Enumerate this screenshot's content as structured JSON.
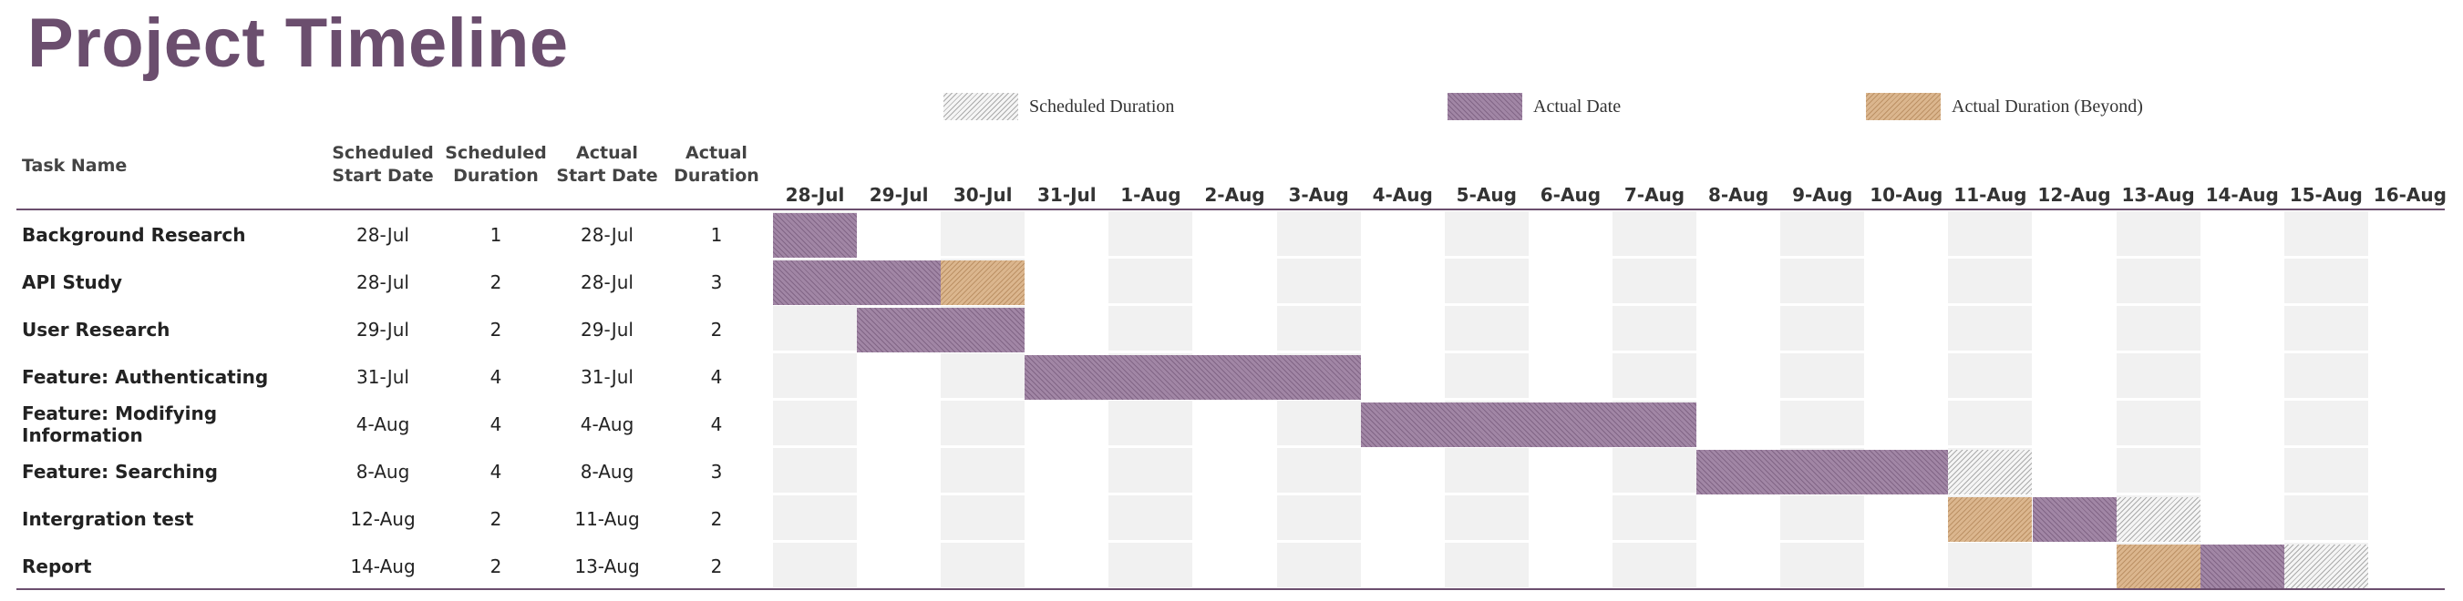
{
  "title": "Project Timeline",
  "legend": {
    "scheduled": "Scheduled Duration",
    "actual": "Actual Date",
    "beyond": "Actual Duration (Beyond)"
  },
  "colors": {
    "title": "#6b4e6e",
    "actual": "#a186a5",
    "beyond": "#dbb68e",
    "scheduled": "#f5f5f5",
    "column_shade": "#f1f1f1",
    "rule": "#6b4e6e"
  },
  "headers": {
    "task_name": "Task Name",
    "scheduled_start": "Scheduled\nStart Date",
    "scheduled_duration": "Scheduled\nDuration",
    "actual_start": "Actual\nStart Date",
    "actual_duration": "Actual\nDuration"
  },
  "dates": [
    "28-Jul",
    "29-Jul",
    "30-Jul",
    "31-Jul",
    "1-Aug",
    "2-Aug",
    "3-Aug",
    "4-Aug",
    "5-Aug",
    "6-Aug",
    "7-Aug",
    "8-Aug",
    "9-Aug",
    "10-Aug",
    "11-Aug",
    "12-Aug",
    "13-Aug",
    "14-Aug",
    "15-Aug",
    "16-Aug"
  ],
  "tasks": [
    {
      "name": "Background Research",
      "scheduled_start": "28-Jul",
      "scheduled_duration": "1",
      "actual_start": "28-Jul",
      "actual_duration": "1"
    },
    {
      "name": "API Study",
      "scheduled_start": "28-Jul",
      "scheduled_duration": "2",
      "actual_start": "28-Jul",
      "actual_duration": "3"
    },
    {
      "name": "User Research",
      "scheduled_start": "29-Jul",
      "scheduled_duration": "2",
      "actual_start": "29-Jul",
      "actual_duration": "2"
    },
    {
      "name": "Feature: Authenticating",
      "scheduled_start": "31-Jul",
      "scheduled_duration": "4",
      "actual_start": "31-Jul",
      "actual_duration": "4"
    },
    {
      "name": "Feature: Modifying Information",
      "scheduled_start": "4-Aug",
      "scheduled_duration": "4",
      "actual_start": "4-Aug",
      "actual_duration": "4"
    },
    {
      "name": "Feature: Searching",
      "scheduled_start": "8-Aug",
      "scheduled_duration": "4",
      "actual_start": "8-Aug",
      "actual_duration": "3"
    },
    {
      "name": "Intergration test",
      "scheduled_start": "12-Aug",
      "scheduled_duration": "2",
      "actual_start": "11-Aug",
      "actual_duration": "2"
    },
    {
      "name": "Report",
      "scheduled_start": "14-Aug",
      "scheduled_duration": "2",
      "actual_start": "13-Aug",
      "actual_duration": "2"
    }
  ]
}
